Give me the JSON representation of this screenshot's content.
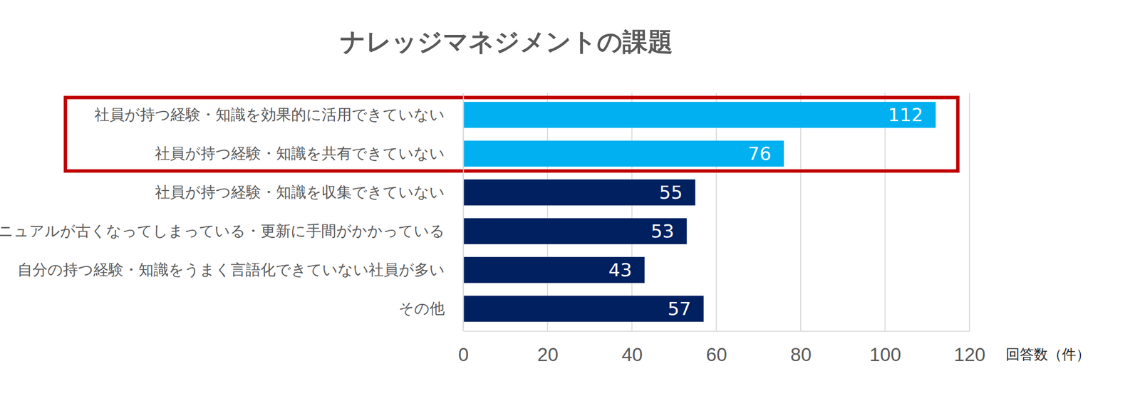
{
  "chart_data": {
    "type": "bar",
    "orientation": "horizontal",
    "title": "ナレッジマネジメントの課題",
    "categories": [
      "社員が持つ経験・知識を効果的に活用できていない",
      "社員が持つ経験・知識を共有できていない",
      "社員が持つ経験・知識を収集できていない",
      "マニュアルが古くなってしまっている・更新に手間がかかっている",
      "自分の持つ経験・知識をうまく言語化できていない社員が多い",
      "その他"
    ],
    "values": [
      112,
      76,
      55,
      53,
      43,
      57
    ],
    "colors": [
      "#00b0f0",
      "#00b0f0",
      "#002060",
      "#002060",
      "#002060",
      "#002060"
    ],
    "xlim": [
      0,
      120
    ],
    "xticks": [
      0,
      20,
      40,
      60,
      80,
      100,
      120
    ],
    "xlabel": "回答数（件）",
    "grid": true,
    "data_labels": true
  }
}
